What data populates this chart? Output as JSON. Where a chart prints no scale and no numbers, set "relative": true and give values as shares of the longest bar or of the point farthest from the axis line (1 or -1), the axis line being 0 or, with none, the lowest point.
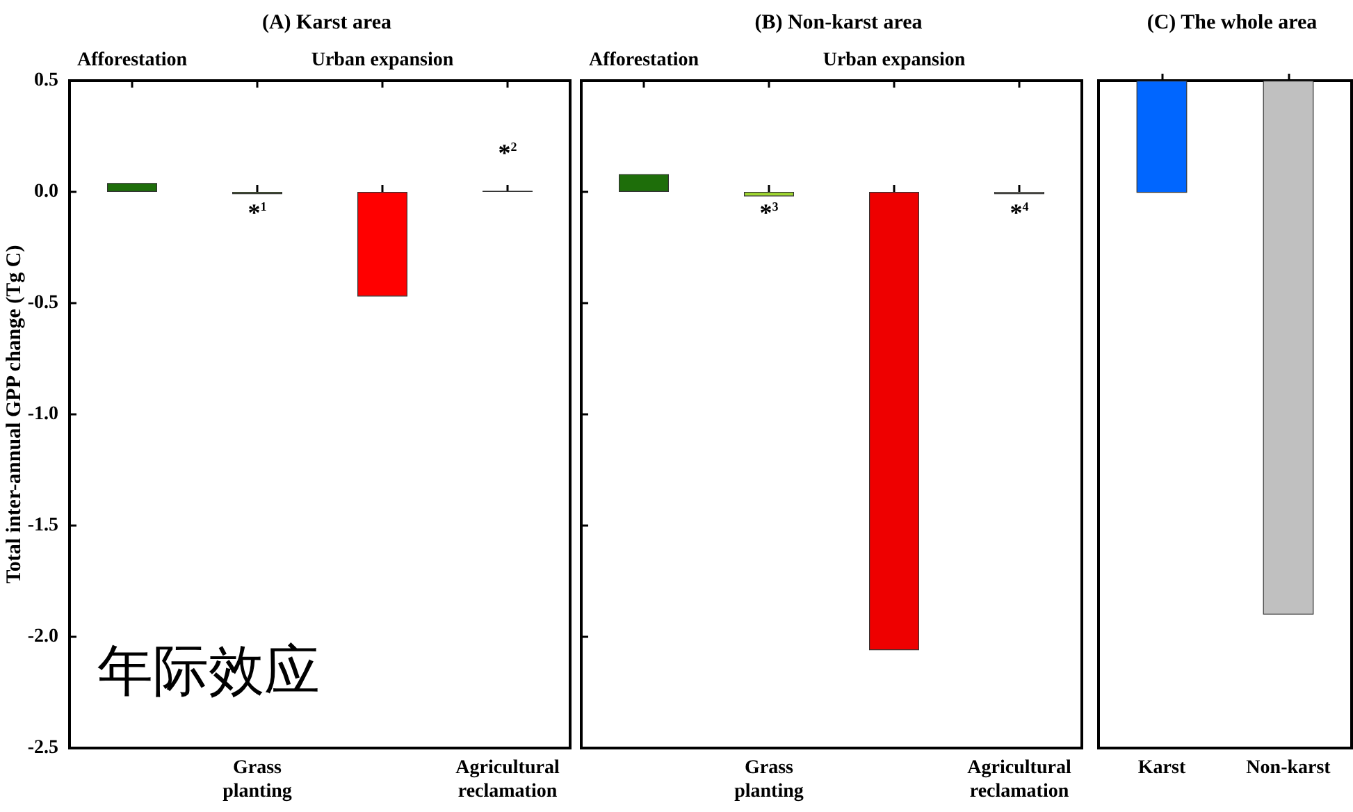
{
  "chart_data": [
    {
      "type": "bar",
      "title": "(A) Karst area",
      "ylabel": "Total inter-annual GPP change (Tg C)",
      "categories": [
        "Afforestation",
        "Grass planting",
        "Urban expansion",
        "Agricultural reclamation"
      ],
      "values": [
        0.04,
        -0.01,
        -0.47,
        0.005
      ],
      "colors": [
        "#1e6e0a",
        "#5a7a30",
        "#ff0000",
        "#3a3a2a"
      ],
      "ylim": [
        -2.5,
        0.5
      ],
      "yticks": [
        -2.5,
        {
          "value": -2,
          "label": "-2.0"
        },
        -1.5,
        {
          "value": -1,
          "label": "-1.0"
        },
        -0.5,
        {
          "value": 0,
          "label": "0.0"
        },
        0.5
      ],
      "grid": false,
      "annotations": [
        "*$^{1}$",
        "*$^{2}$",
        "年际效应"
      ]
    },
    {
      "type": "bar",
      "title": "(B) Non-karst area",
      "categories": [
        "Afforestation",
        "Grass planting",
        "Urban expansion",
        "Agricultural reclamation"
      ],
      "values": [
        0.08,
        -0.02,
        -2.06,
        -0.01
      ],
      "colors": [
        "#1e6e0a",
        "#a0d830",
        "#ee0000",
        "#b0b0a0"
      ],
      "ylim": [
        -2.5,
        0.5
      ],
      "yticks": [
        -2.5,
        -2,
        -1.5,
        -1,
        -0.5,
        0,
        0.5
      ],
      "tick_labels": "x",
      "grid": false,
      "annotations": [
        "*$^{3}$",
        "*$^{4}$"
      ]
    },
    {
      "type": "bar",
      "title": "(C) The whole area",
      "categories": [
        "Karst",
        "Non-karst"
      ],
      "relative": true,
      "values": [
        -0.21,
        -1
      ],
      "colors": [
        "#0066ff",
        "#c0c0c0"
      ],
      "grid": false
    }
  ]
}
